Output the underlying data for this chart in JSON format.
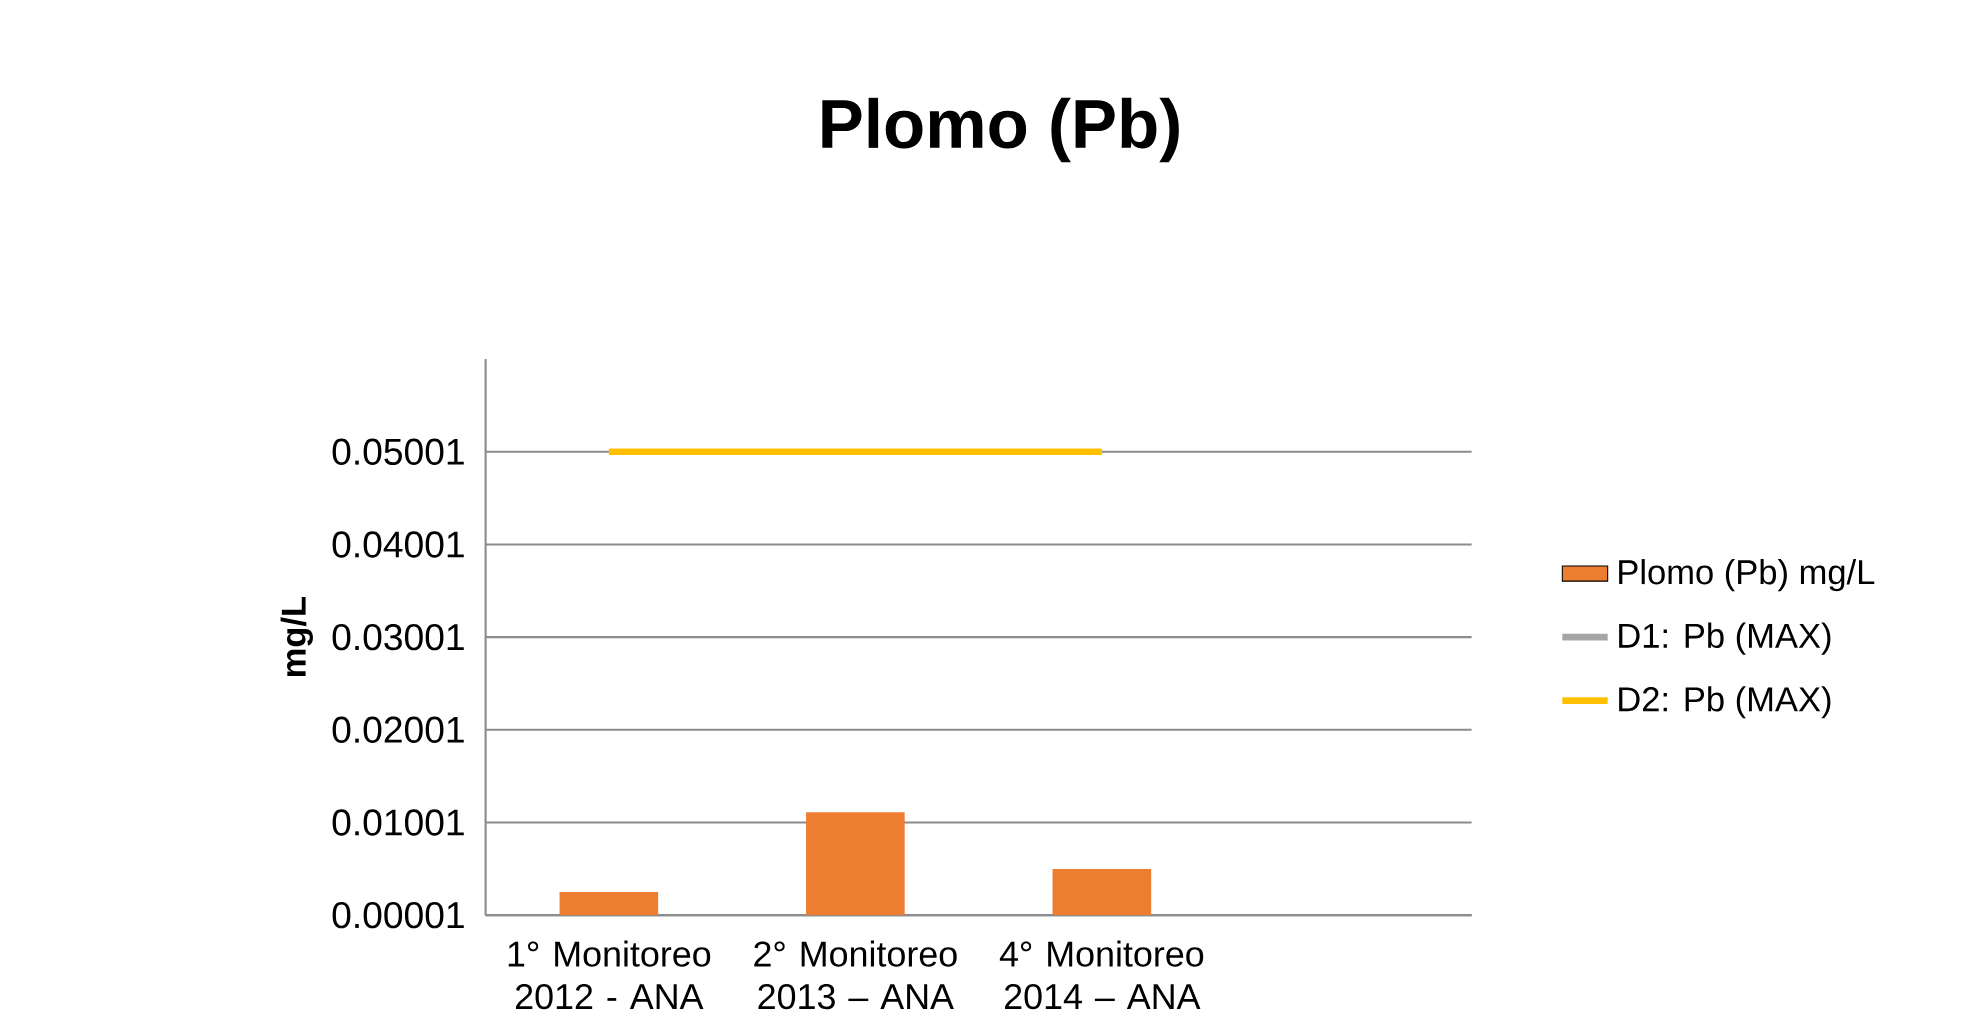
{
  "chart_data": {
    "type": "bar",
    "title": "Plomo (Pb)",
    "ylabel": "mg/L",
    "categories": [
      "1° Monitoreo 2012 - ANA",
      "2° Monitoreo 2013 – ANA",
      "4° Monitoreo 2014 – ANA",
      null
    ],
    "series": [
      {
        "name": "Plomo (Pb) mg/L",
        "color": "#ed7d31",
        "values": [
          0.0025,
          0.0111,
          0.005,
          null
        ]
      },
      {
        "name": "D1: Pb (MAX)",
        "type": "line",
        "color": "#a5a5a5",
        "values": [
          null,
          null,
          null,
          null
        ]
      },
      {
        "name": "D2: Pb (MAX)",
        "type": "line",
        "color": "#ffc000",
        "values": [
          0.05001,
          0.05001,
          0.05001,
          null
        ]
      }
    ],
    "ylim": [
      1e-05,
      0.06001
    ],
    "yticks": [
      {
        "value": 1e-05,
        "label": "0.00001"
      },
      {
        "value": 0.01001,
        "label": "0.01001"
      },
      {
        "value": 0.02001,
        "label": "0.02001"
      },
      {
        "value": 0.03001,
        "label": "0.03001"
      },
      {
        "value": 0.04001,
        "label": "0.04001"
      },
      {
        "value": 0.05001,
        "label": "0.05001"
      }
    ],
    "grid": "y",
    "legend": "right",
    "marker": "none"
  }
}
